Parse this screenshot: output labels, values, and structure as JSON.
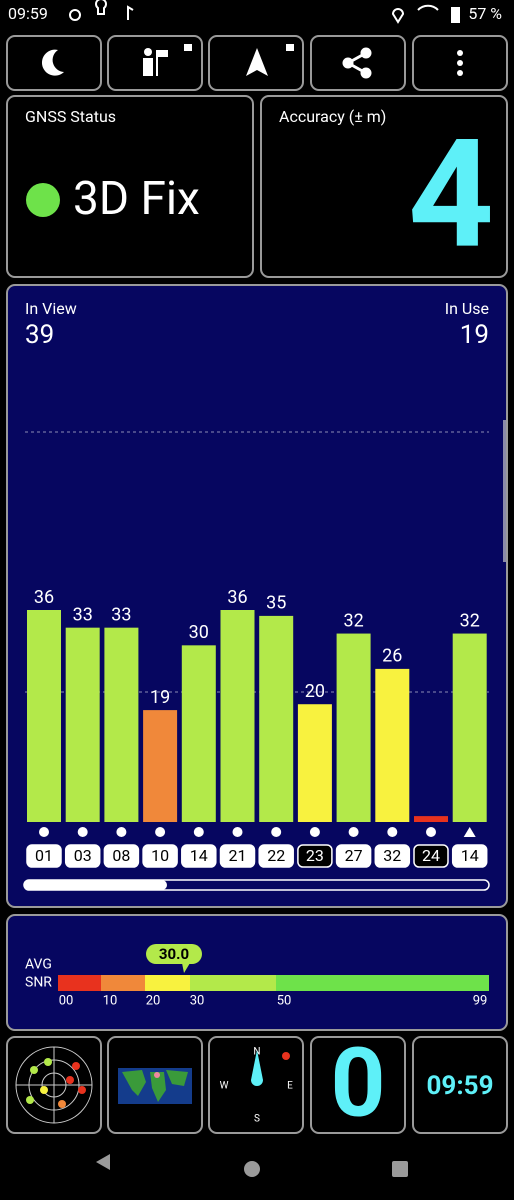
{
  "status_bar": {
    "time": "09:59",
    "battery": "57 %"
  },
  "gnss_status": {
    "label": "GNSS Status",
    "fix": "3D Fix"
  },
  "accuracy": {
    "label": "Accuracy (± m)",
    "value": "4"
  },
  "satellites": {
    "in_view_label": "In View",
    "in_view": "39",
    "in_use_label": "In Use",
    "in_use": "19"
  },
  "signal_chart": {
    "categories": [
      "01",
      "03",
      "08",
      "10",
      "14",
      "21",
      "22",
      "23",
      "27",
      "32",
      "24",
      "14"
    ],
    "values": [
      36,
      33,
      33,
      19,
      30,
      36,
      35,
      20,
      32,
      26,
      1,
      32
    ],
    "value_labels": [
      "36",
      "33",
      "33",
      "19",
      "30",
      "36",
      "35",
      "20",
      "32",
      "26",
      null,
      "32"
    ],
    "colors": [
      "#b3e94a",
      "#b3e94a",
      "#b3e94a",
      "#f0883a",
      "#b3e94a",
      "#b3e94a",
      "#b3e94a",
      "#f8f23f",
      "#b3e94a",
      "#f8f23f",
      "#e8321e",
      "#b3e94a"
    ],
    "used": [
      true,
      true,
      true,
      true,
      true,
      true,
      true,
      false,
      true,
      true,
      false,
      true
    ],
    "markers": [
      "circle",
      "circle",
      "circle",
      "circle",
      "circle",
      "circle",
      "circle",
      "circle",
      "circle",
      "circle",
      "circle",
      "triangle"
    ]
  },
  "snr_meter": {
    "avg_label": "AVG",
    "snr_label": "SNR",
    "average": "30.0",
    "scale_labels": [
      "00",
      "10",
      "20",
      "30",
      "50",
      "99"
    ]
  },
  "bottom_tiles": {
    "compass": {
      "north": "N",
      "east": "E",
      "south": "S",
      "west": "W"
    },
    "count": "0",
    "clock": "09:59"
  }
}
